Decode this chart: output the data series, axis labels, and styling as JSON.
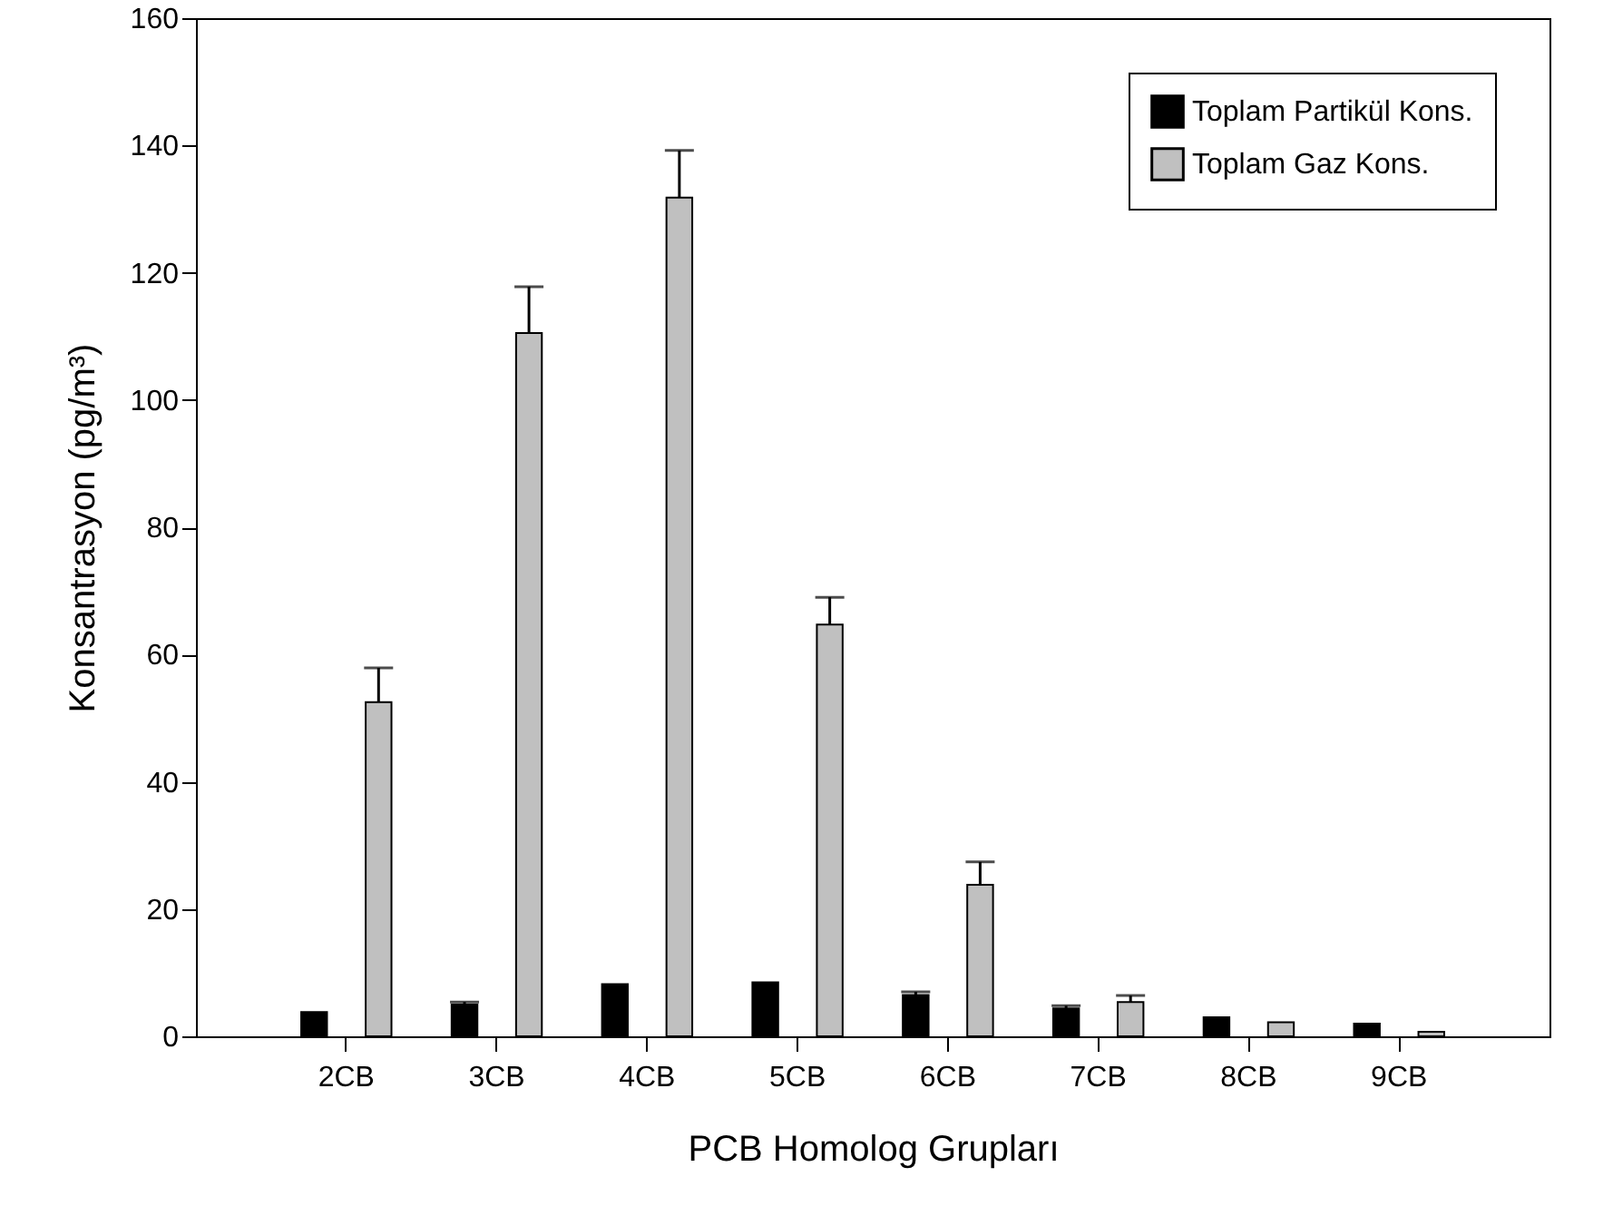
{
  "chart_data": {
    "type": "bar",
    "xlabel": "PCB Homolog Grupları",
    "ylabel": "Konsantrasyon (pg/m³)",
    "categories": [
      "2CB",
      "3CB",
      "4CB",
      "5CB",
      "6CB",
      "7CB",
      "8CB",
      "9CB"
    ],
    "series": [
      {
        "name": "Toplam Partikül Kons.",
        "color": "#000000",
        "values": [
          3.8,
          5.0,
          8.2,
          8.5,
          6.5,
          4.4,
          3.0,
          2.0
        ],
        "errors": [
          null,
          [
            5.0,
            5.4
          ],
          null,
          null,
          [
            6.5,
            7.0
          ],
          [
            4.4,
            4.8
          ],
          null,
          null
        ]
      },
      {
        "name": "Toplam Gaz Kons.",
        "color": "#c0c0c0",
        "values": [
          52.5,
          110.5,
          131.8,
          64.7,
          23.8,
          5.4,
          2.2,
          0.7
        ],
        "errors": [
          [
            52.5,
            57.9
          ],
          [
            110.5,
            117.8
          ],
          [
            131.8,
            139.2
          ],
          [
            64.7,
            69.0
          ],
          [
            23.8,
            27.4
          ],
          [
            5.4,
            6.4
          ],
          null,
          null
        ]
      }
    ],
    "ylim": [
      0,
      160
    ],
    "yticks": [
      0,
      20,
      40,
      60,
      80,
      100,
      120,
      140,
      160
    ],
    "grid": false,
    "legend": "top right"
  }
}
